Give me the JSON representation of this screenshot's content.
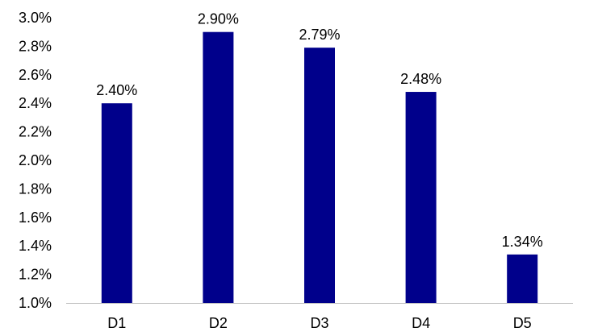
{
  "chart_data": {
    "type": "bar",
    "title": "",
    "xlabel": "",
    "ylabel": "",
    "categories": [
      "D1",
      "D2",
      "D3",
      "D4",
      "D5"
    ],
    "values": [
      2.4,
      2.9,
      2.79,
      2.48,
      1.34
    ],
    "data_labels": [
      "2.40%",
      "2.90%",
      "2.79%",
      "2.48%",
      "1.34%"
    ],
    "ylim": [
      1.0,
      3.0
    ],
    "y_ticks": [
      1.0,
      1.2,
      1.4,
      1.6,
      1.8,
      2.0,
      2.2,
      2.4,
      2.6,
      2.8,
      3.0
    ],
    "y_tick_labels": [
      "1.0%",
      "1.2%",
      "1.4%",
      "1.6%",
      "1.8%",
      "2.0%",
      "2.2%",
      "2.4%",
      "2.6%",
      "2.8%",
      "3.0%"
    ],
    "bar_color": "#00008B",
    "grid": false,
    "legend": "none"
  }
}
